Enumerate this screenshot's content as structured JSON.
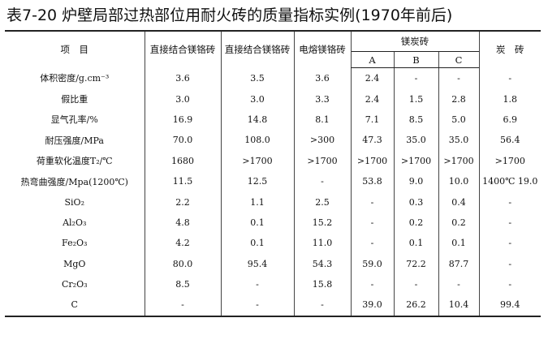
{
  "title": "表7-20 炉壁局部过热部位用耐火砖的质量指标实例(1970年前后)",
  "header": {
    "item": "项　目",
    "cols": [
      "直接结合镁铬砖",
      "直接结合镁铬砖",
      "电熔镁铬砖"
    ],
    "group": "镁炭砖",
    "sub": [
      "A",
      "B",
      "C"
    ],
    "last": "炭　砖"
  },
  "rows": [
    {
      "label": "体积密度/g.cm⁻³",
      "cells": [
        "3.6",
        "3.5",
        "3.6",
        "2.4",
        "-",
        "-",
        "-"
      ]
    },
    {
      "label": "假比重",
      "cells": [
        "3.0",
        "3.0",
        "3.3",
        "2.4",
        "1.5",
        "2.8",
        "1.8"
      ]
    },
    {
      "label": "显气孔率/%",
      "cells": [
        "16.9",
        "14.8",
        "8.1",
        "7.1",
        "8.5",
        "5.0",
        "6.9"
      ]
    },
    {
      "label": "耐压强度/MPa",
      "cells": [
        "70.0",
        "108.0",
        ">300",
        "47.3",
        "35.0",
        "35.0",
        "56.4"
      ]
    },
    {
      "label": "荷重软化温度T₂/℃",
      "cells": [
        "1680",
        ">1700",
        ">1700",
        ">1700",
        ">1700",
        ">1700",
        ">1700"
      ]
    },
    {
      "label": "热弯曲强度/Mpa(1200℃)",
      "cells": [
        "11.5",
        "12.5",
        "-",
        "53.8",
        "9.0",
        "10.0",
        "1400℃ 19.0"
      ]
    },
    {
      "label": "SiO₂",
      "cells": [
        "2.2",
        "1.1",
        "2.5",
        "-",
        "0.3",
        "0.4",
        "-"
      ]
    },
    {
      "label": "Al₂O₃",
      "cells": [
        "4.8",
        "0.1",
        "15.2",
        "-",
        "0.2",
        "0.2",
        "-"
      ]
    },
    {
      "label": "Fe₂O₃",
      "cells": [
        "4.2",
        "0.1",
        "11.0",
        "-",
        "0.1",
        "0.1",
        "-"
      ]
    },
    {
      "label": "MgO",
      "cells": [
        "80.0",
        "95.4",
        "54.3",
        "59.0",
        "72.2",
        "87.7",
        "-"
      ]
    },
    {
      "label": "Cr₂O₃",
      "cells": [
        "8.5",
        "-",
        "15.8",
        "-",
        "-",
        "-",
        "-"
      ]
    },
    {
      "label": "C",
      "cells": [
        "-",
        "-",
        "-",
        "39.0",
        "26.2",
        "10.4",
        "99.4"
      ]
    }
  ]
}
